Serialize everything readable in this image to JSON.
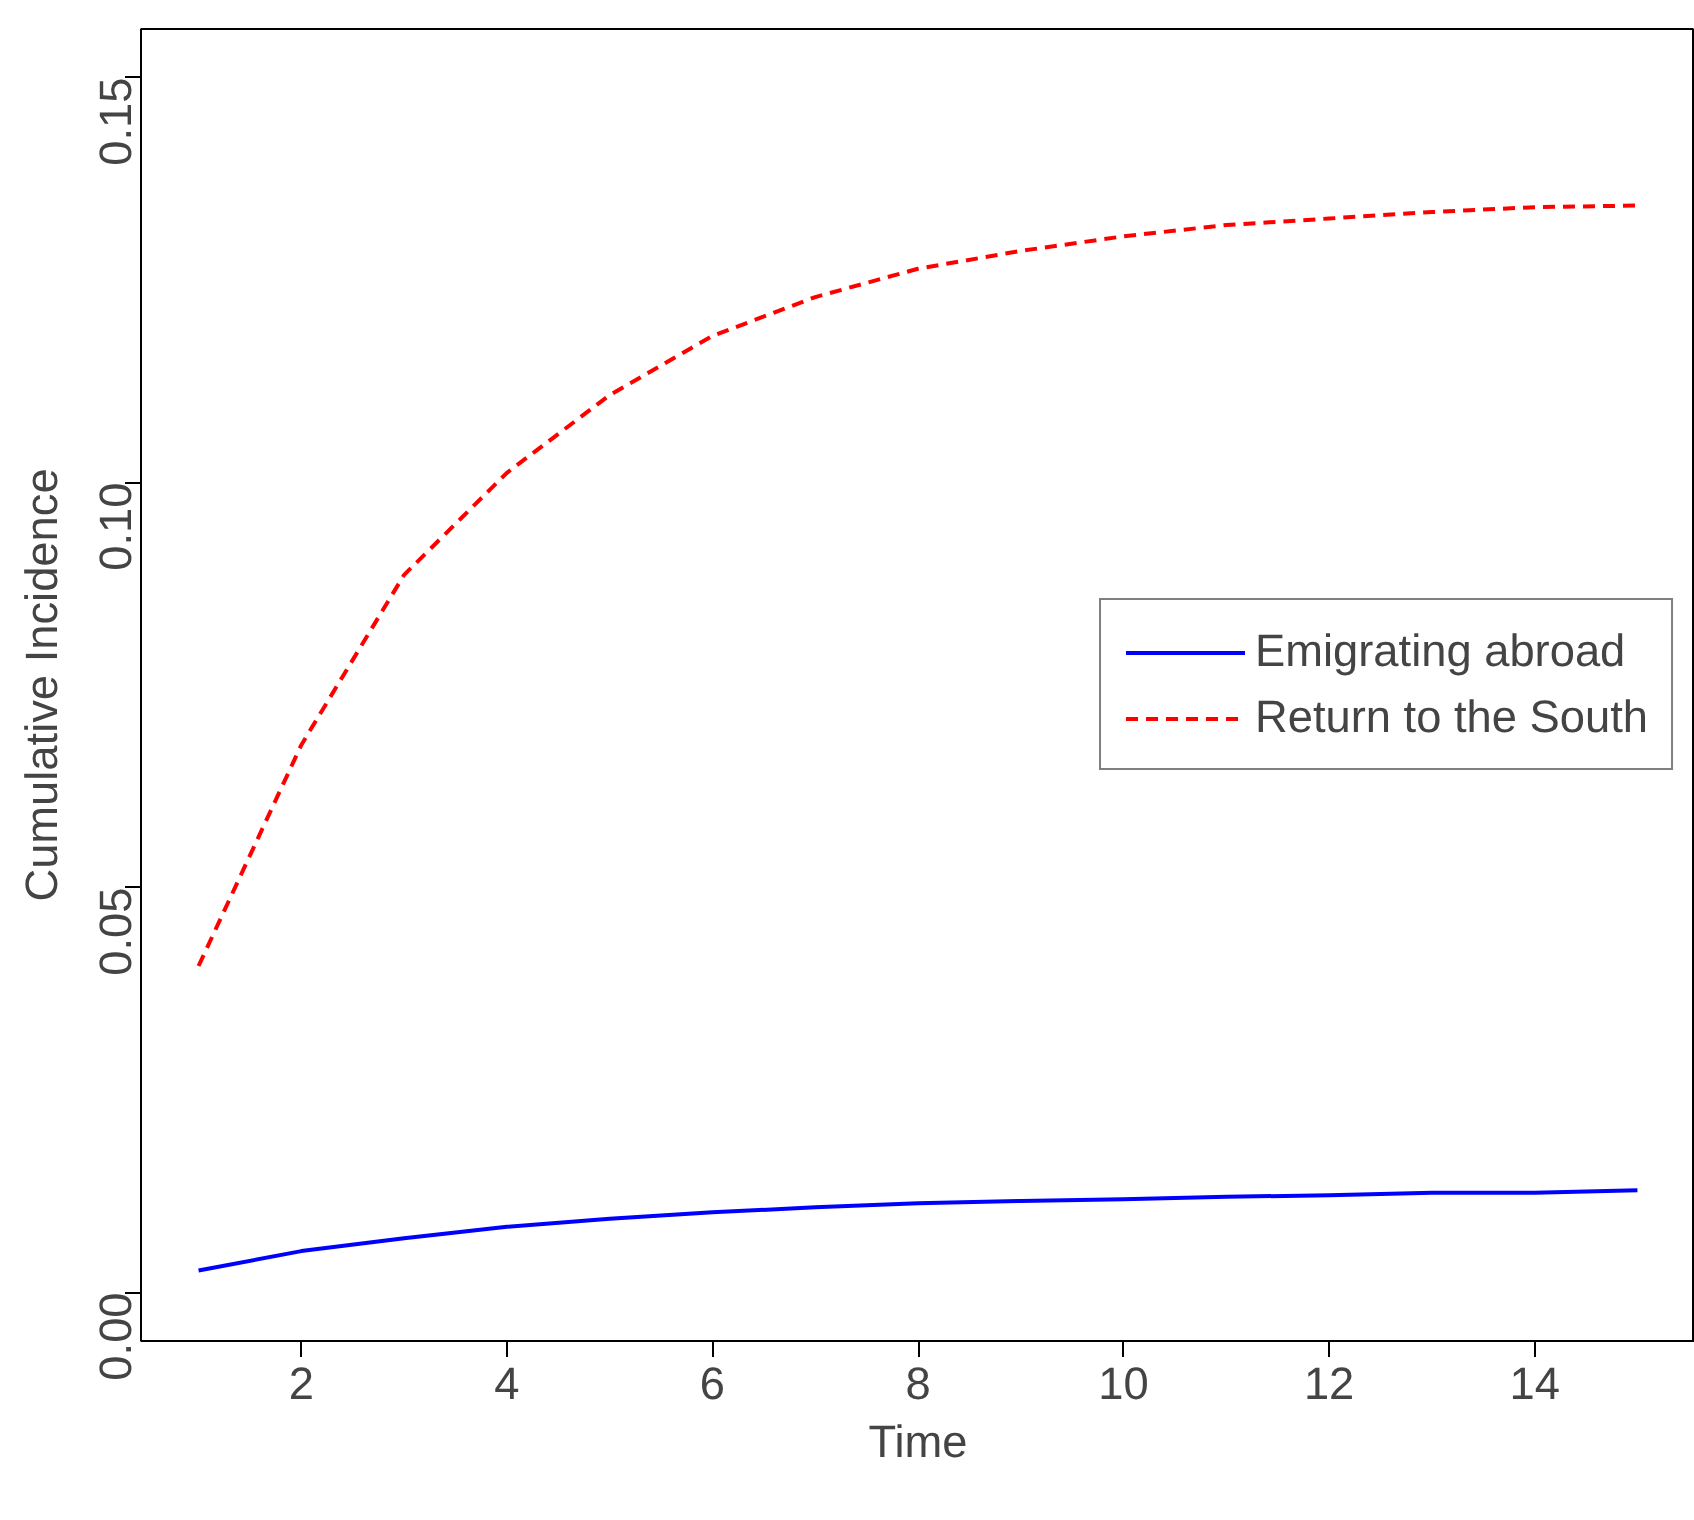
{
  "chart_data": {
    "type": "line",
    "xlabel": "Time",
    "ylabel": "Cumulative Incidence",
    "x": [
      1,
      2,
      3,
      4,
      5,
      6,
      7,
      8,
      9,
      10,
      11,
      12,
      13,
      14,
      15
    ],
    "series": [
      {
        "name": "Emigrating abroad",
        "color": "#0000ff",
        "line_style": "solid",
        "values": [
          0.0027,
          0.0051,
          0.0067,
          0.0081,
          0.0091,
          0.0099,
          0.0105,
          0.011,
          0.0113,
          0.0115,
          0.0118,
          0.012,
          0.0123,
          0.0123,
          0.0126
        ]
      },
      {
        "name": "Return to the South",
        "color": "#ff0000",
        "line_style": "dashed",
        "values": [
          0.0403,
          0.0676,
          0.0886,
          0.1012,
          0.1108,
          0.1181,
          0.1229,
          0.1264,
          0.1286,
          0.1304,
          0.1318,
          0.1326,
          0.1334,
          0.134,
          0.1342
        ]
      }
    ],
    "xlim": [
      0.44,
      15.56
    ],
    "ylim": [
      -0.006,
      0.156
    ],
    "xticks": [
      2,
      4,
      6,
      8,
      10,
      12,
      14
    ],
    "yticks": [
      {
        "value": 0,
        "label": "0.00"
      },
      {
        "value": 0.05,
        "label": "0.05"
      },
      {
        "value": 0.1,
        "label": "0.10"
      },
      {
        "value": 0.15,
        "label": "0.15"
      }
    ],
    "grid": false,
    "legend": "right",
    "marker": "none"
  }
}
